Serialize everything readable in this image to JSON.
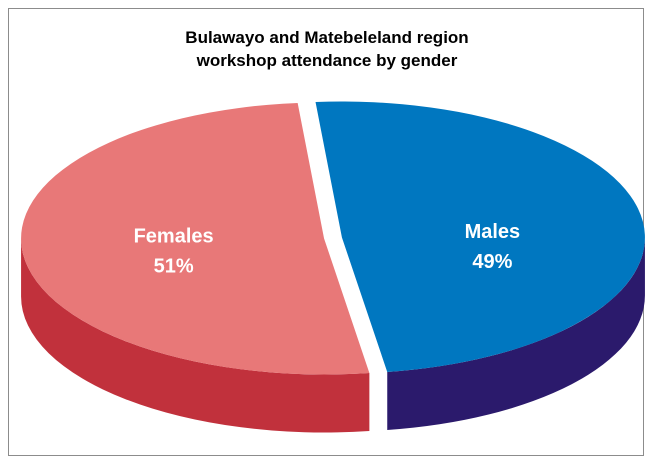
{
  "chart_data": {
    "type": "pie3d",
    "title": "Bulawayo and Matebeleland region workshop attendance by gender",
    "categories": [
      "Females",
      "Males"
    ],
    "values": [
      51,
      49
    ],
    "value_labels": [
      "51%",
      "49%"
    ],
    "colors": [
      "#e87878",
      "#0077c0"
    ],
    "side_colors": [
      "#c1313c",
      "#2b1a6c"
    ]
  }
}
